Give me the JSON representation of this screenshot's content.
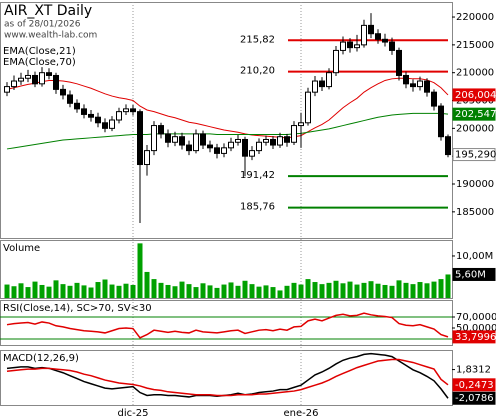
{
  "chart_data": [
    {
      "type": "candlestick",
      "title": "AIR_XT Daily",
      "subtitle": "as of 28/01/2026",
      "source": "www.wealth-lab.com",
      "open": [
        206500,
        207500,
        208500,
        209000,
        209500,
        208000,
        210000,
        209500,
        207000,
        206000,
        204500,
        203500,
        202500,
        202000,
        201000,
        200000,
        201500,
        203000,
        203500,
        203000,
        193500,
        196000,
        200500,
        199000,
        197500,
        198500,
        197000,
        196000,
        199000,
        197000,
        196500,
        195500,
        196500,
        197500,
        198000,
        195000,
        196000,
        197500,
        198000,
        197000,
        198500,
        197500,
        200500,
        201000,
        206500,
        208500,
        207500,
        210000,
        214000,
        215500,
        214500,
        215000,
        218500,
        217000,
        216000,
        215500,
        214000,
        209500,
        208000,
        207500,
        208500,
        206500,
        204000,
        198500
      ],
      "high": [
        208300,
        209500,
        210000,
        210500,
        210200,
        211000,
        210800,
        210000,
        207800,
        206800,
        205200,
        204300,
        203300,
        202800,
        201800,
        202200,
        203700,
        204300,
        204200,
        203400,
        197000,
        201300,
        201000,
        199800,
        199400,
        199200,
        197800,
        199800,
        199600,
        197800,
        197200,
        197300,
        198300,
        198800,
        198500,
        196800,
        198200,
        198700,
        198600,
        199200,
        199000,
        201300,
        202800,
        207300,
        209400,
        209200,
        210800,
        214800,
        216500,
        216200,
        216800,
        219500,
        220700,
        217800,
        217000,
        216300,
        214500,
        210200,
        208800,
        209300,
        209000,
        207000,
        204500,
        198900
      ],
      "low": [
        205800,
        206900,
        207800,
        208300,
        207400,
        207500,
        208800,
        206200,
        205200,
        203800,
        202800,
        201800,
        201200,
        200200,
        199300,
        199500,
        200900,
        202400,
        202300,
        183000,
        191500,
        195200,
        198200,
        196600,
        196800,
        196200,
        195200,
        195500,
        196300,
        195700,
        194600,
        194800,
        195900,
        196900,
        191400,
        194300,
        195400,
        196900,
        196300,
        196500,
        196700,
        197000,
        196500,
        200500,
        205800,
        206700,
        207000,
        209400,
        213300,
        213600,
        213800,
        214500,
        216200,
        215200,
        214700,
        213200,
        208600,
        207200,
        206600,
        206800,
        205700,
        203200,
        197800,
        194800
      ],
      "close": [
        207500,
        208500,
        209000,
        209500,
        208000,
        210000,
        209500,
        207000,
        206000,
        204500,
        203500,
        202500,
        202000,
        201000,
        200000,
        201500,
        203000,
        203500,
        203000,
        193500,
        196000,
        200500,
        199000,
        197500,
        198500,
        197000,
        196000,
        199000,
        197000,
        196500,
        195500,
        196500,
        197500,
        198000,
        195000,
        196000,
        197500,
        198000,
        197000,
        198500,
        197500,
        200500,
        201000,
        206500,
        208500,
        207500,
        210000,
        214000,
        215500,
        214500,
        215000,
        218500,
        217000,
        216000,
        215500,
        214000,
        209500,
        208000,
        207500,
        208500,
        206500,
        204000,
        198500,
        195290
      ],
      "close_label": "195,290",
      "ylim": [
        180300,
        222700
      ],
      "yticks": [
        185000,
        190000,
        195000,
        200000,
        205000,
        210000,
        215000,
        220000
      ],
      "series": [
        {
          "name": "EMA(Close,21)",
          "color": "#e00000",
          "last_label": "206,004",
          "values": [
            207000,
            207300,
            207600,
            207900,
            208100,
            208400,
            208600,
            208600,
            208500,
            208300,
            208000,
            207600,
            207200,
            206700,
            206200,
            205800,
            205500,
            205300,
            205000,
            204000,
            203300,
            203000,
            202600,
            202200,
            201900,
            201500,
            201100,
            200900,
            200600,
            200300,
            200000,
            199700,
            199500,
            199300,
            199000,
            198800,
            198700,
            198600,
            198500,
            198400,
            198300,
            198500,
            198700,
            199400,
            200100,
            200700,
            201500,
            202600,
            203700,
            204600,
            205400,
            206500,
            207300,
            208000,
            208600,
            208900,
            209000,
            209000,
            208900,
            208900,
            208700,
            208200,
            207300,
            206004
          ]
        },
        {
          "name": "EMA(Close,70)",
          "color": "#008000",
          "last_label": "202,547",
          "values": [
            196300,
            196500,
            196700,
            196900,
            197100,
            197300,
            197500,
            197700,
            197900,
            198000,
            198100,
            198200,
            198300,
            198400,
            198500,
            198600,
            198700,
            198800,
            198900,
            198900,
            198900,
            199000,
            199000,
            199000,
            199000,
            199000,
            199000,
            199000,
            199000,
            199000,
            198900,
            198900,
            198900,
            198900,
            198900,
            198900,
            198900,
            198900,
            198900,
            198900,
            198900,
            199000,
            199100,
            199300,
            199500,
            199700,
            199900,
            200200,
            200500,
            200800,
            201100,
            201400,
            201700,
            202000,
            202200,
            202400,
            202500,
            202600,
            202700,
            202700,
            202700,
            202700,
            202700,
            202547
          ]
        }
      ],
      "levels": [
        {
          "value": 215820,
          "label": "215,82",
          "color": "#e00000"
        },
        {
          "value": 210200,
          "label": "210,20",
          "color": "#e00000"
        },
        {
          "value": 191420,
          "label": "191,42",
          "color": "#008000"
        },
        {
          "value": 185760,
          "label": "185,76",
          "color": "#008000"
        }
      ]
    },
    {
      "type": "bar",
      "title": "Volume",
      "color": "#00a000",
      "ylim": [
        0,
        13.8
      ],
      "yticks": [
        {
          "value": 10,
          "label": "10,00M"
        }
      ],
      "last_label": "5,60M",
      "values": [
        3.2,
        2.8,
        3.5,
        2.6,
        3.9,
        3.1,
        2.7,
        4.2,
        3.3,
        2.9,
        3.6,
        3.0,
        2.5,
        3.8,
        4.4,
        3.2,
        2.9,
        3.4,
        3.1,
        13,
        6.2,
        4.5,
        3.6,
        3.1,
        2.8,
        3.9,
        3.3,
        2.6,
        3.5,
        3.0,
        2.4,
        3.2,
        3.7,
        2.9,
        4.1,
        3.3,
        2.7,
        3.0,
        2.6,
        1.8,
        2.9,
        3.6,
        3.2,
        4.5,
        3.8,
        3.3,
        3.6,
        4.1,
        3.5,
        3.9,
        3.2,
        3.6,
        4.0,
        3.4,
        3.1,
        2.9,
        4.2,
        3.6,
        3.3,
        3.8,
        3.5,
        3.9,
        4.5,
        5.6
      ]
    },
    {
      "type": "line",
      "title": "RSI(Close,14), SC>70, SV<30",
      "color": "#e00000",
      "ylim": [
        19,
        101
      ],
      "yticks": [
        {
          "value": 70,
          "label": "70,0000"
        },
        {
          "value": 50,
          "label": "50,0000"
        }
      ],
      "levels": [
        70,
        30
      ],
      "last_label": "33,7996",
      "values": [
        56,
        58,
        59,
        60,
        57,
        61,
        59,
        54,
        52,
        49,
        47,
        45,
        44,
        43,
        41,
        45,
        49,
        50,
        49,
        32,
        38,
        46,
        44,
        42,
        44,
        42,
        41,
        46,
        43,
        42,
        41,
        43,
        45,
        46,
        40,
        43,
        46,
        47,
        45,
        48,
        46,
        52,
        53,
        63,
        66,
        63,
        68,
        73,
        75,
        72,
        73,
        77,
        74,
        72,
        71,
        69,
        58,
        55,
        54,
        56,
        52,
        48,
        38,
        33.7996
      ]
    },
    {
      "type": "line",
      "title": "MACD(12,26,9)",
      "ylim": [
        -3,
        4.5
      ],
      "yticks": [
        {
          "value": 1.8312,
          "label": "1,8312"
        }
      ],
      "series": [
        {
          "color": "#000000",
          "last_label": "-2,0786",
          "values": [
            2.0,
            2.1,
            2.2,
            2.2,
            2.0,
            2.1,
            2.0,
            1.7,
            1.4,
            1.0,
            0.6,
            0.2,
            -0.1,
            -0.4,
            -0.7,
            -0.8,
            -0.7,
            -0.6,
            -0.5,
            -1.3,
            -1.7,
            -1.6,
            -1.6,
            -1.7,
            -1.7,
            -1.8,
            -1.9,
            -1.7,
            -1.7,
            -1.7,
            -1.8,
            -1.7,
            -1.6,
            -1.4,
            -1.6,
            -1.5,
            -1.3,
            -1.2,
            -1.1,
            -0.9,
            -0.9,
            -0.6,
            -0.3,
            0.4,
            1.1,
            1.5,
            2.0,
            2.6,
            3.1,
            3.4,
            3.6,
            3.9,
            4.0,
            3.9,
            3.8,
            3.6,
            3.0,
            2.4,
            1.8,
            1.4,
            0.9,
            0.3,
            -0.8,
            -2.0786
          ]
        },
        {
          "color": "#e00000",
          "last_label": "-0,2473",
          "values": [
            1.6,
            1.7,
            1.8,
            1.9,
            1.9,
            2.0,
            2.0,
            1.9,
            1.8,
            1.7,
            1.5,
            1.2,
            1.0,
            0.7,
            0.4,
            0.2,
            0.0,
            -0.1,
            -0.2,
            -0.4,
            -0.7,
            -0.9,
            -1.0,
            -1.2,
            -1.3,
            -1.4,
            -1.5,
            -1.6,
            -1.6,
            -1.6,
            -1.7,
            -1.7,
            -1.7,
            -1.6,
            -1.6,
            -1.6,
            -1.5,
            -1.5,
            -1.4,
            -1.3,
            -1.2,
            -1.1,
            -0.9,
            -0.6,
            -0.3,
            0.0,
            0.4,
            0.9,
            1.3,
            1.7,
            2.1,
            2.4,
            2.7,
            3.0,
            3.1,
            3.2,
            3.2,
            3.0,
            2.8,
            2.5,
            2.2,
            1.9,
            0.5,
            -0.2473
          ]
        }
      ],
      "x_labels": [
        {
          "index": 18,
          "label": "dic-25"
        },
        {
          "index": 42,
          "label": "ene-26"
        }
      ]
    }
  ]
}
